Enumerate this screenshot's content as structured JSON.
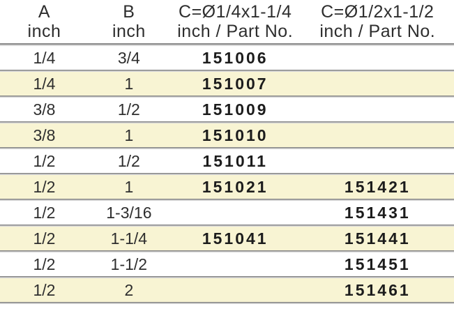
{
  "colors": {
    "stripe": "#f8f4d3",
    "divider_dark": "#878787",
    "divider_light": "#d9d9d9",
    "text": "#2e2e2e"
  },
  "table": {
    "headers": [
      {
        "line1": "A",
        "line2": "inch"
      },
      {
        "line1": "B",
        "line2": "inch"
      },
      {
        "line1": "C=Ø1/4x1-1/4",
        "line2": "inch / Part No."
      },
      {
        "line1": "C=Ø1/2x1-1/2",
        "line2": "inch / Part No."
      }
    ],
    "rows": [
      {
        "a": "1/4",
        "b": "3/4",
        "c1": "151006",
        "c2": ""
      },
      {
        "a": "1/4",
        "b": "1",
        "c1": "151007",
        "c2": ""
      },
      {
        "a": "3/8",
        "b": "1/2",
        "c1": "151009",
        "c2": ""
      },
      {
        "a": "3/8",
        "b": "1",
        "c1": "151010",
        "c2": ""
      },
      {
        "a": "1/2",
        "b": "1/2",
        "c1": "151011",
        "c2": ""
      },
      {
        "a": "1/2",
        "b": "1",
        "c1": "151021",
        "c2": "151421"
      },
      {
        "a": "1/2",
        "b": "1-3/16",
        "c1": "",
        "c2": "151431"
      },
      {
        "a": "1/2",
        "b": "1-1/4",
        "c1": "151041",
        "c2": "151441"
      },
      {
        "a": "1/2",
        "b": "1-1/2",
        "c1": "",
        "c2": "151451"
      },
      {
        "a": "1/2",
        "b": "2",
        "c1": "",
        "c2": "151461"
      }
    ]
  },
  "chart_data": {
    "type": "table",
    "columns": [
      "A inch",
      "B inch",
      "C=Ø1/4x1-1/4 inch / Part No.",
      "C=Ø1/2x1-1/2 inch / Part No."
    ],
    "rows": [
      [
        "1/4",
        "3/4",
        "151006",
        ""
      ],
      [
        "1/4",
        "1",
        "151007",
        ""
      ],
      [
        "3/8",
        "1/2",
        "151009",
        ""
      ],
      [
        "3/8",
        "1",
        "151010",
        ""
      ],
      [
        "1/2",
        "1/2",
        "151011",
        ""
      ],
      [
        "1/2",
        "1",
        "151021",
        "151421"
      ],
      [
        "1/2",
        "1-3/16",
        "",
        "151431"
      ],
      [
        "1/2",
        "1-1/4",
        "151041",
        "151441"
      ],
      [
        "1/2",
        "1-1/2",
        "",
        "151451"
      ],
      [
        "1/2",
        "2",
        "",
        "151461"
      ]
    ]
  }
}
